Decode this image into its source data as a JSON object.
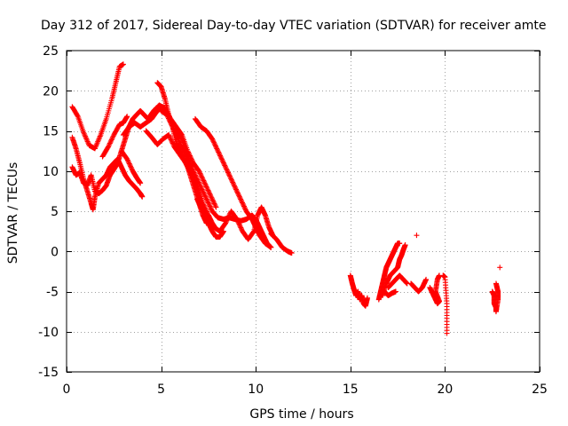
{
  "chart_data": {
    "type": "scatter",
    "title": "Day 312 of 2017, Sidereal Day-to-day VTEC variation (SDTVAR) for receiver amte",
    "xlabel": "GPS time / hours",
    "ylabel": "SDTVAR / TECUs",
    "xlim": [
      0,
      25
    ],
    "ylim": [
      -15,
      25
    ],
    "xticks": [
      0,
      5,
      10,
      15,
      20,
      25
    ],
    "yticks": [
      -15,
      -10,
      -5,
      0,
      5,
      10,
      15,
      20,
      25
    ],
    "xtick_labels": [
      "0",
      "5",
      "10",
      "15",
      "20",
      "25"
    ],
    "ytick_labels": [
      "-15",
      "-10",
      "-5",
      "0",
      "5",
      "10",
      "15",
      "20",
      "25"
    ],
    "grid": true,
    "marker": "+",
    "series": [
      {
        "name": "SDTVAR",
        "color": "#ff0000",
        "segments": [
          [
            [
              0.3,
              18.0
            ],
            [
              0.6,
              16.8
            ],
            [
              0.9,
              14.8
            ],
            [
              1.2,
              13.2
            ],
            [
              1.5,
              12.8
            ],
            [
              1.8,
              14.5
            ],
            [
              2.1,
              16.5
            ],
            [
              2.4,
              19.0
            ],
            [
              2.6,
              21.0
            ],
            [
              2.8,
              23.0
            ],
            [
              3.0,
              23.3
            ]
          ],
          [
            [
              0.3,
              14.2
            ],
            [
              0.5,
              12.8
            ],
            [
              0.7,
              11.0
            ],
            [
              0.9,
              9.0
            ],
            [
              1.1,
              7.5
            ],
            [
              1.3,
              6.0
            ],
            [
              1.4,
              5.2
            ],
            [
              1.5,
              6.8
            ],
            [
              1.7,
              8.5
            ],
            [
              1.9,
              9.0
            ],
            [
              2.1,
              9.5
            ],
            [
              2.3,
              10.5
            ],
            [
              2.5,
              11.0
            ],
            [
              2.7,
              11.5
            ],
            [
              2.9,
              10.5
            ],
            [
              3.1,
              9.5
            ],
            [
              3.3,
              8.8
            ],
            [
              3.5,
              8.3
            ],
            [
              3.7,
              7.8
            ],
            [
              3.9,
              7.2
            ],
            [
              4.0,
              6.8
            ]
          ],
          [
            [
              0.3,
              10.5
            ],
            [
              0.5,
              9.5
            ],
            [
              0.7,
              9.8
            ],
            [
              0.9,
              8.5
            ],
            [
              1.1,
              8.2
            ],
            [
              1.3,
              9.5
            ],
            [
              1.5,
              7.5
            ],
            [
              1.7,
              7.2
            ],
            [
              1.9,
              7.6
            ],
            [
              2.1,
              8.2
            ],
            [
              2.3,
              9.5
            ],
            [
              2.5,
              10.2
            ],
            [
              2.7,
              11.0
            ],
            [
              2.9,
              12.5
            ],
            [
              3.1,
              14.0
            ],
            [
              3.3,
              15.5
            ],
            [
              3.5,
              16.5
            ],
            [
              3.7,
              17.0
            ],
            [
              3.9,
              17.5
            ],
            [
              4.1,
              17.0
            ],
            [
              4.3,
              16.5
            ],
            [
              4.6,
              17.5
            ],
            [
              4.9,
              18.2
            ],
            [
              5.2,
              17.8
            ],
            [
              5.5,
              16.5
            ],
            [
              5.8,
              15.5
            ],
            [
              6.1,
              14.5
            ],
            [
              6.4,
              12.5
            ],
            [
              6.7,
              11.0
            ],
            [
              7.0,
              10.0
            ],
            [
              7.3,
              8.5
            ],
            [
              7.6,
              7.0
            ],
            [
              7.9,
              5.5
            ]
          ],
          [
            [
              1.9,
              11.8
            ],
            [
              2.2,
              13.0
            ],
            [
              2.5,
              14.5
            ],
            [
              2.8,
              15.8
            ],
            [
              3.0,
              16.0
            ],
            [
              3.2,
              16.8
            ]
          ],
          [
            [
              2.9,
              12.5
            ],
            [
              3.2,
              11.5
            ],
            [
              3.5,
              10.0
            ],
            [
              3.7,
              9.2
            ],
            [
              3.9,
              8.5
            ]
          ],
          [
            [
              3.0,
              14.5
            ],
            [
              3.3,
              15.5
            ],
            [
              3.6,
              16.0
            ],
            [
              3.9,
              15.5
            ],
            [
              4.2,
              16.0
            ],
            [
              4.5,
              16.5
            ],
            [
              4.8,
              17.5
            ],
            [
              5.1,
              18.0
            ]
          ],
          [
            [
              4.2,
              15.0
            ],
            [
              4.5,
              14.2
            ],
            [
              4.8,
              13.3
            ],
            [
              5.1,
              14.0
            ],
            [
              5.4,
              14.5
            ],
            [
              5.7,
              13.0
            ],
            [
              6.0,
              12.0
            ],
            [
              6.3,
              11.0
            ],
            [
              6.6,
              9.5
            ],
            [
              6.9,
              8.0
            ],
            [
              7.2,
              6.0
            ],
            [
              7.5,
              4.5
            ],
            [
              7.7,
              3.5
            ],
            [
              7.9,
              2.8
            ]
          ],
          [
            [
              5.0,
              17.5
            ],
            [
              5.3,
              17.0
            ],
            [
              5.6,
              15.5
            ],
            [
              5.9,
              14.0
            ],
            [
              6.2,
              12.5
            ],
            [
              6.5,
              11.0
            ],
            [
              6.8,
              9.5
            ],
            [
              7.1,
              8.0
            ],
            [
              7.4,
              6.5
            ],
            [
              7.7,
              5.0
            ],
            [
              8.0,
              4.2
            ],
            [
              8.3,
              4.0
            ],
            [
              8.6,
              4.2
            ],
            [
              8.9,
              4.0
            ],
            [
              9.2,
              3.8
            ],
            [
              9.5,
              4.0
            ],
            [
              9.8,
              4.5
            ],
            [
              10.0,
              4.0
            ],
            [
              10.2,
              3.0
            ],
            [
              10.4,
              2.0
            ],
            [
              10.6,
              1.0
            ],
            [
              10.8,
              0.5
            ]
          ],
          [
            [
              4.8,
              21.0
            ],
            [
              5.0,
              20.5
            ],
            [
              5.2,
              19.0
            ],
            [
              5.4,
              17.0
            ],
            [
              5.6,
              15.5
            ],
            [
              5.8,
              13.5
            ],
            [
              6.0,
              12.5
            ],
            [
              6.2,
              11.5
            ],
            [
              6.4,
              10.5
            ],
            [
              6.6,
              9.0
            ],
            [
              6.8,
              7.5
            ],
            [
              7.0,
              6.0
            ],
            [
              7.2,
              4.5
            ],
            [
              7.4,
              3.5
            ]
          ],
          [
            [
              5.8,
              15.0
            ],
            [
              6.1,
              14.0
            ],
            [
              6.4,
              12.0
            ],
            [
              6.6,
              10.0
            ],
            [
              6.8,
              8.5
            ],
            [
              7.0,
              7.0
            ],
            [
              7.2,
              5.5
            ],
            [
              7.4,
              4.0
            ]
          ],
          [
            [
              6.8,
              16.5
            ],
            [
              7.1,
              15.5
            ],
            [
              7.4,
              15.0
            ],
            [
              7.7,
              14.0
            ],
            [
              8.0,
              12.5
            ],
            [
              8.3,
              11.0
            ],
            [
              8.6,
              9.5
            ],
            [
              8.9,
              8.0
            ],
            [
              9.2,
              6.5
            ],
            [
              9.5,
              5.0
            ],
            [
              9.8,
              4.0
            ],
            [
              10.0,
              3.0
            ],
            [
              10.2,
              2.0
            ],
            [
              10.5,
              1.0
            ],
            [
              10.8,
              0.5
            ]
          ],
          [
            [
              7.5,
              4.0
            ],
            [
              7.8,
              3.0
            ],
            [
              8.1,
              2.5
            ],
            [
              8.4,
              3.5
            ],
            [
              8.7,
              5.0
            ],
            [
              9.0,
              4.0
            ],
            [
              9.3,
              2.5
            ],
            [
              9.6,
              1.5
            ],
            [
              9.9,
              2.5
            ],
            [
              10.1,
              4.5
            ],
            [
              10.3,
              5.5
            ],
            [
              10.5,
              4.5
            ],
            [
              10.7,
              3.0
            ],
            [
              10.9,
              2.0
            ]
          ],
          [
            [
              6.9,
              6.5
            ],
            [
              7.1,
              5.5
            ],
            [
              7.3,
              4.5
            ],
            [
              7.5,
              3.5
            ],
            [
              7.7,
              2.5
            ],
            [
              7.9,
              1.8
            ],
            [
              8.1,
              1.8
            ],
            [
              8.3,
              2.5
            ]
          ],
          [
            [
              10.8,
              2.2
            ],
            [
              11.1,
              1.5
            ],
            [
              11.4,
              0.5
            ],
            [
              11.7,
              0.0
            ],
            [
              11.9,
              -0.2
            ]
          ],
          [
            [
              15.0,
              -3.0
            ],
            [
              15.1,
              -4.0
            ],
            [
              15.2,
              -4.8
            ],
            [
              15.3,
              -5.5
            ],
            [
              15.4,
              -5.0
            ],
            [
              15.5,
              -6.0
            ],
            [
              15.6,
              -5.5
            ],
            [
              15.7,
              -6.5
            ],
            [
              15.8,
              -6.8
            ],
            [
              15.9,
              -5.8
            ]
          ],
          [
            [
              16.5,
              -6.0
            ],
            [
              16.6,
              -5.0
            ],
            [
              16.7,
              -4.0
            ],
            [
              16.8,
              -3.0
            ],
            [
              16.9,
              -2.0
            ],
            [
              17.0,
              -1.5
            ],
            [
              17.1,
              -1.0
            ],
            [
              17.2,
              -0.5
            ],
            [
              17.3,
              0.0
            ],
            [
              17.4,
              0.5
            ],
            [
              17.5,
              1.0
            ],
            [
              17.6,
              1.0
            ]
          ],
          [
            [
              16.7,
              -5.5
            ],
            [
              16.9,
              -4.0
            ],
            [
              17.1,
              -3.0
            ],
            [
              17.3,
              -2.5
            ],
            [
              17.5,
              -2.0
            ],
            [
              17.6,
              -1.0
            ],
            [
              17.7,
              -0.5
            ],
            [
              17.8,
              0.2
            ],
            [
              17.9,
              0.8
            ]
          ],
          [
            [
              17.0,
              -4.5
            ],
            [
              17.2,
              -4.0
            ],
            [
              17.4,
              -3.5
            ],
            [
              17.6,
              -3.0
            ],
            [
              17.8,
              -3.5
            ],
            [
              18.0,
              -4.0
            ]
          ],
          [
            [
              16.8,
              -5.0
            ],
            [
              17.0,
              -5.5
            ],
            [
              17.2,
              -5.2
            ],
            [
              17.4,
              -5.0
            ]
          ],
          [
            [
              18.5,
              2.0
            ]
          ],
          [
            [
              18.2,
              -4.0
            ],
            [
              18.4,
              -4.5
            ],
            [
              18.6,
              -5.0
            ],
            [
              18.8,
              -4.5
            ],
            [
              19.0,
              -3.5
            ]
          ],
          [
            [
              19.2,
              -4.5
            ],
            [
              19.4,
              -5.5
            ],
            [
              19.6,
              -6.5
            ],
            [
              19.7,
              -6.2
            ],
            [
              19.5,
              -5.0
            ],
            [
              19.6,
              -3.5
            ],
            [
              19.7,
              -3.0
            ]
          ],
          [
            [
              19.9,
              -3.0
            ],
            [
              20.0,
              -3.2
            ],
            [
              20.1,
              -6.5
            ],
            [
              20.1,
              -10.2
            ]
          ],
          [
            [
              22.5,
              -5.0
            ],
            [
              22.6,
              -5.5
            ],
            [
              22.6,
              -6.5
            ],
            [
              22.7,
              -7.0
            ],
            [
              22.7,
              -7.5
            ],
            [
              22.8,
              -6.0
            ],
            [
              22.8,
              -5.0
            ],
            [
              22.7,
              -4.0
            ]
          ],
          [
            [
              22.9,
              -2.0
            ]
          ]
        ]
      }
    ]
  }
}
